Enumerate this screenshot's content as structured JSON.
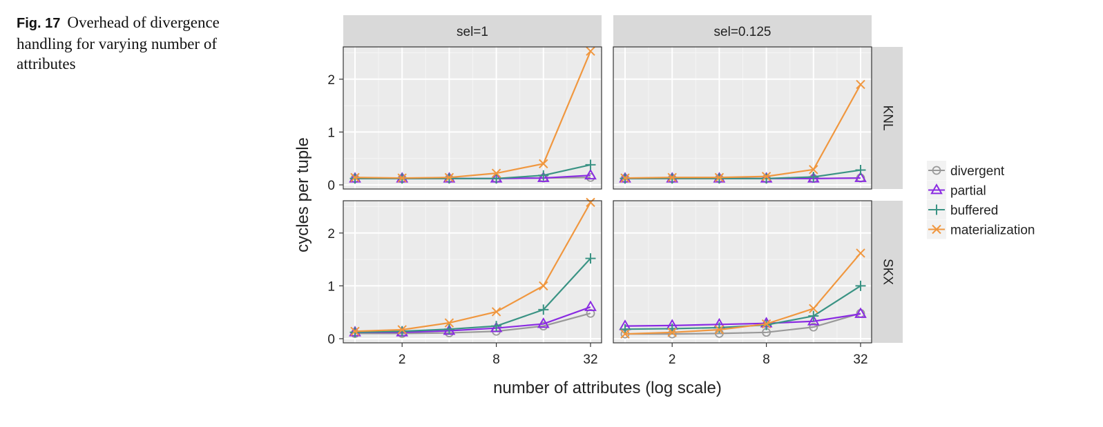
{
  "caption": {
    "fig_label": "Fig. 17",
    "text": "Overhead of divergence handling for varying number of attributes"
  },
  "chart_data": {
    "type": "line",
    "xlabel": "number of attributes (log scale)",
    "ylabel": "cycles per tuple",
    "x": [
      1,
      2,
      4,
      8,
      16,
      32
    ],
    "x_scale": "log2",
    "x_ticks": [
      2,
      8,
      32
    ],
    "x_tick_labels": [
      "2",
      "8",
      "32"
    ],
    "y_ticks": [
      0,
      1,
      2
    ],
    "y_tick_labels": [
      "0",
      "1",
      "2"
    ],
    "ylim": [
      0,
      2.6
    ],
    "columns": [
      "sel=1",
      "sel=0.125"
    ],
    "rows": [
      "KNL",
      "SKX"
    ],
    "legend": {
      "position": "right",
      "entries": [
        {
          "name": "divergent",
          "color": "#999999",
          "marker": "circle"
        },
        {
          "name": "partial",
          "color": "#8a2be2",
          "marker": "triangle"
        },
        {
          "name": "buffered",
          "color": "#3a9384",
          "marker": "plus"
        },
        {
          "name": "materialization",
          "color": "#f0973f",
          "marker": "cross"
        }
      ]
    },
    "panels": [
      {
        "row": "KNL",
        "column": "sel=1",
        "series": [
          {
            "name": "divergent",
            "values": [
              0.12,
              0.12,
              0.12,
              0.12,
              0.13,
              0.14
            ]
          },
          {
            "name": "partial",
            "values": [
              0.12,
              0.12,
              0.12,
              0.12,
              0.13,
              0.18
            ]
          },
          {
            "name": "buffered",
            "values": [
              0.12,
              0.12,
              0.12,
              0.12,
              0.18,
              0.38
            ]
          },
          {
            "name": "materialization",
            "values": [
              0.14,
              0.13,
              0.14,
              0.22,
              0.4,
              2.53
            ]
          }
        ]
      },
      {
        "row": "KNL",
        "column": "sel=0.125",
        "series": [
          {
            "name": "divergent",
            "values": [
              0.12,
              0.12,
              0.12,
              0.12,
              0.12,
              0.13
            ]
          },
          {
            "name": "partial",
            "values": [
              0.12,
              0.12,
              0.12,
              0.12,
              0.12,
              0.13
            ]
          },
          {
            "name": "buffered",
            "values": [
              0.12,
              0.12,
              0.12,
              0.12,
              0.15,
              0.28
            ]
          },
          {
            "name": "materialization",
            "values": [
              0.13,
              0.14,
              0.14,
              0.16,
              0.29,
              1.9
            ]
          }
        ]
      },
      {
        "row": "SKX",
        "column": "sel=1",
        "series": [
          {
            "name": "divergent",
            "values": [
              0.1,
              0.1,
              0.11,
              0.14,
              0.24,
              0.48
            ]
          },
          {
            "name": "partial",
            "values": [
              0.12,
              0.12,
              0.15,
              0.2,
              0.28,
              0.6
            ]
          },
          {
            "name": "buffered",
            "values": [
              0.12,
              0.14,
              0.18,
              0.24,
              0.55,
              1.52
            ]
          },
          {
            "name": "materialization",
            "values": [
              0.14,
              0.17,
              0.3,
              0.51,
              1.0,
              2.58
            ]
          }
        ]
      },
      {
        "row": "SKX",
        "column": "sel=0.125",
        "series": [
          {
            "name": "divergent",
            "values": [
              0.09,
              0.09,
              0.1,
              0.12,
              0.22,
              0.48
            ]
          },
          {
            "name": "partial",
            "values": [
              0.24,
              0.25,
              0.27,
              0.29,
              0.33,
              0.47
            ]
          },
          {
            "name": "buffered",
            "values": [
              0.18,
              0.19,
              0.21,
              0.26,
              0.43,
              1.0
            ]
          },
          {
            "name": "materialization",
            "values": [
              0.09,
              0.12,
              0.17,
              0.28,
              0.57,
              1.62
            ]
          }
        ]
      }
    ]
  }
}
